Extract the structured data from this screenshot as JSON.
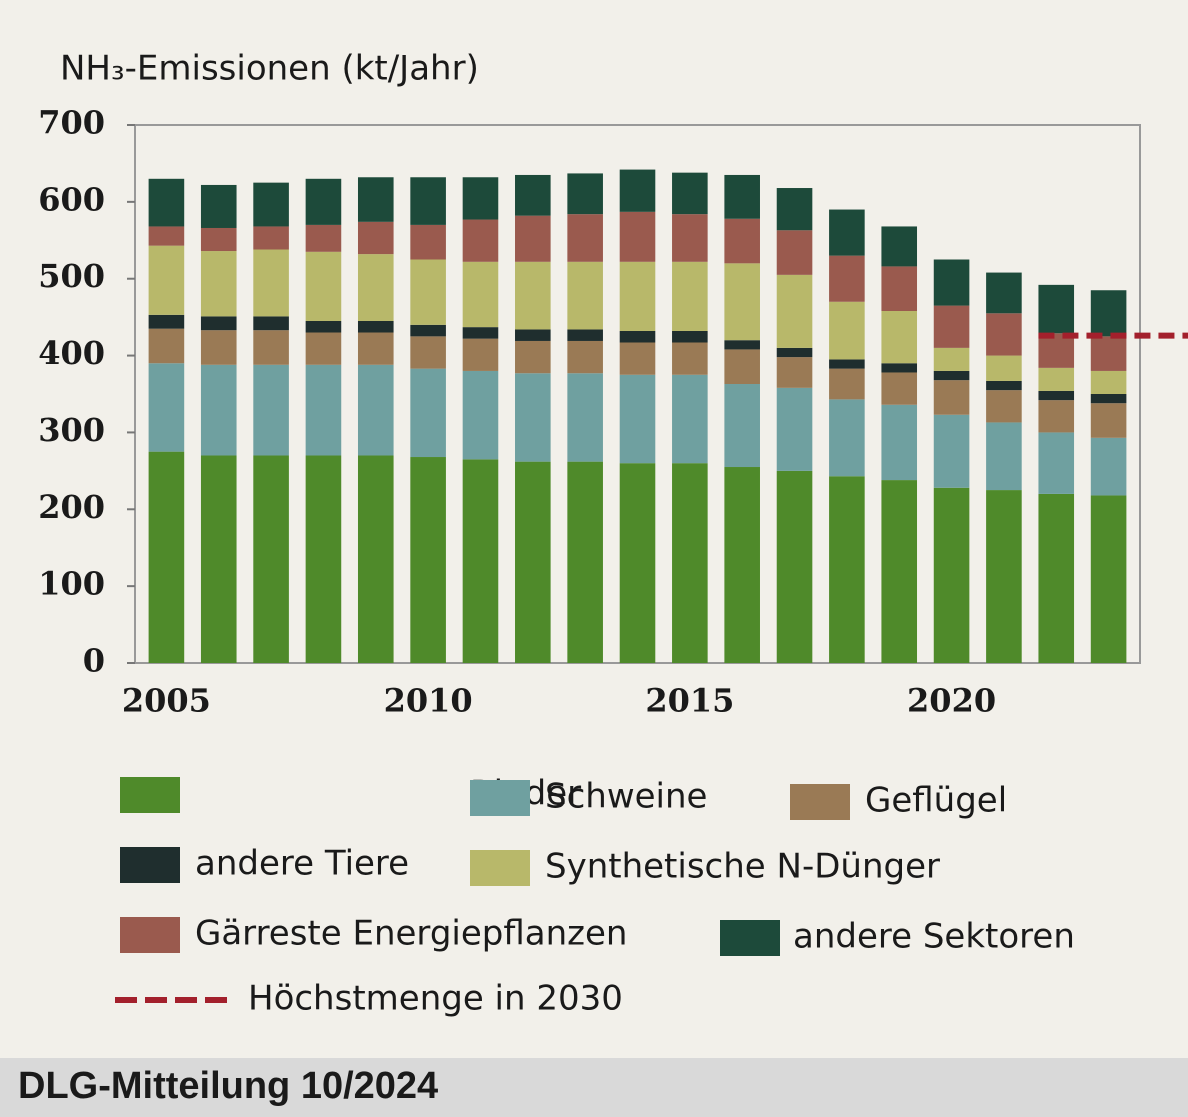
{
  "chart_data": {
    "type": "stacked_bar",
    "y_label": "NH₃-Emissionen (kt/Jahr)",
    "source": "DLG-Mitteilung 10/2024",
    "x": [
      2005,
      2006,
      2007,
      2008,
      2009,
      2010,
      2011,
      2012,
      2013,
      2014,
      2015,
      2016,
      2017,
      2018,
      2019,
      2020,
      2021,
      2022,
      2023
    ],
    "xlim": [
      2004.4,
      2023.6
    ],
    "xticks": [
      2005,
      2010,
      2015,
      2020
    ],
    "ylim": [
      0,
      700
    ],
    "yticks": [
      0,
      100,
      200,
      300,
      400,
      500,
      600,
      700
    ],
    "series": [
      {
        "name": "Rinder",
        "color": "#4f8a2a",
        "values": [
          275,
          270,
          270,
          270,
          270,
          268,
          265,
          262,
          262,
          260,
          260,
          255,
          250,
          243,
          238,
          228,
          225,
          220,
          218
        ]
      },
      {
        "name": "Schweine",
        "color": "#6fa0a0",
        "values": [
          115,
          118,
          118,
          118,
          118,
          115,
          115,
          115,
          115,
          115,
          115,
          108,
          108,
          100,
          98,
          95,
          88,
          80,
          75
        ]
      },
      {
        "name": "Geflügel",
        "color": "#9a7a55",
        "values": [
          45,
          45,
          45,
          42,
          42,
          42,
          42,
          42,
          42,
          42,
          42,
          45,
          40,
          40,
          42,
          45,
          42,
          42,
          45
        ]
      },
      {
        "name": "andere Tiere",
        "color": "#1f2e2e",
        "values": [
          18,
          18,
          18,
          15,
          15,
          15,
          15,
          15,
          15,
          15,
          15,
          12,
          12,
          12,
          12,
          12,
          12,
          12,
          12
        ]
      },
      {
        "name": "Synthetische N-Dünger",
        "color": "#b8b86a",
        "values": [
          90,
          85,
          87,
          90,
          87,
          85,
          85,
          88,
          88,
          90,
          90,
          100,
          95,
          75,
          68,
          30,
          33,
          30,
          30
        ]
      },
      {
        "name": "Gärreste Energiepflanzen",
        "color": "#9a5a4e",
        "values": [
          25,
          30,
          30,
          35,
          42,
          45,
          55,
          60,
          62,
          65,
          62,
          58,
          58,
          60,
          58,
          55,
          55,
          45,
          45
        ]
      },
      {
        "name": "andere Sektoren",
        "color": "#1d4a3a",
        "values": [
          62,
          56,
          57,
          60,
          58,
          62,
          55,
          53,
          53,
          55,
          54,
          57,
          55,
          60,
          52,
          60,
          53,
          63,
          60
        ]
      }
    ],
    "target": {
      "name": "Höchstmenge in 2030",
      "value": 426,
      "x_start": 2022,
      "color": "#a3202c"
    }
  }
}
